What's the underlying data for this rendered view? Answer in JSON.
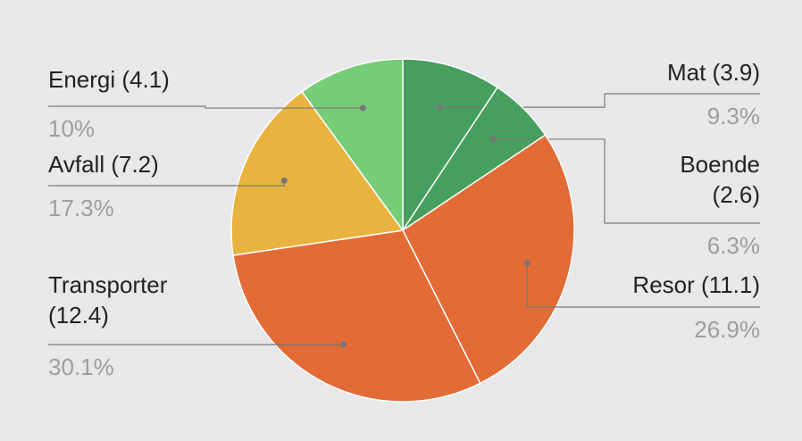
{
  "chart_data": {
    "type": "pie",
    "categories": [
      "Mat (3.9)",
      "Boende (2.6)",
      "Resor (11.1)",
      "Transporter (12.4)",
      "Avfall (7.2)",
      "Energi (4.1)"
    ],
    "values": [
      9.3,
      6.3,
      26.9,
      30.1,
      17.3,
      10
    ],
    "value_labels": [
      "9.3%",
      "6.3%",
      "26.9%",
      "30.1%",
      "17.3%",
      "10%"
    ],
    "colors": [
      "#469e5f",
      "#469e5f",
      "#e36b36",
      "#e36b36",
      "#e8b33f",
      "#77cc77"
    ]
  }
}
